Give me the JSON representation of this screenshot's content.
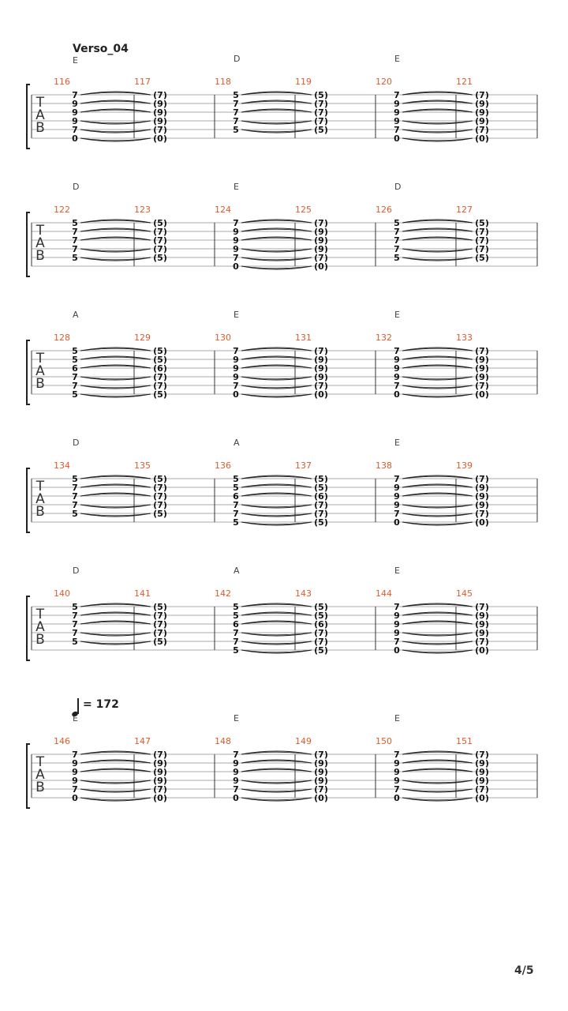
{
  "section_title": "Verso_04",
  "tempo": "= 172",
  "page_number": "4/5",
  "tab_clef": [
    "T",
    "A",
    "B"
  ],
  "colors": {
    "staff_line": "#aaaaaa",
    "bar_line": "#333333",
    "measure_number": "#e05a2b",
    "fret": "#111111",
    "chord": "#444444"
  },
  "systems": [
    {
      "measures": [
        {
          "number": "116",
          "chord": "E",
          "frets": [
            "7",
            "9",
            "9",
            "9",
            "7",
            "0"
          ]
        },
        {
          "number": "117",
          "chord": "",
          "frets": [
            "(7)",
            "(9)",
            "(9)",
            "(9)",
            "(7)",
            "(0)"
          ]
        },
        {
          "number": "118",
          "chord": "D",
          "frets": [
            "5",
            "7",
            "7",
            "7",
            "5",
            ""
          ]
        },
        {
          "number": "119",
          "chord": "",
          "frets": [
            "(5)",
            "(7)",
            "(7)",
            "(7)",
            "(5)",
            ""
          ]
        },
        {
          "number": "120",
          "chord": "E",
          "frets": [
            "7",
            "9",
            "9",
            "9",
            "7",
            "0"
          ]
        },
        {
          "number": "121",
          "chord": "",
          "frets": [
            "(7)",
            "(9)",
            "(9)",
            "(9)",
            "(7)",
            "(0)"
          ]
        }
      ]
    },
    {
      "measures": [
        {
          "number": "122",
          "chord": "D",
          "frets": [
            "5",
            "7",
            "7",
            "7",
            "5",
            ""
          ]
        },
        {
          "number": "123",
          "chord": "",
          "frets": [
            "(5)",
            "(7)",
            "(7)",
            "(7)",
            "(5)",
            ""
          ]
        },
        {
          "number": "124",
          "chord": "E",
          "frets": [
            "7",
            "9",
            "9",
            "9",
            "7",
            "0"
          ]
        },
        {
          "number": "125",
          "chord": "",
          "frets": [
            "(7)",
            "(9)",
            "(9)",
            "(9)",
            "(7)",
            "(0)"
          ]
        },
        {
          "number": "126",
          "chord": "D",
          "frets": [
            "5",
            "7",
            "7",
            "7",
            "5",
            ""
          ]
        },
        {
          "number": "127",
          "chord": "",
          "frets": [
            "(5)",
            "(7)",
            "(7)",
            "(7)",
            "(5)",
            ""
          ]
        }
      ]
    },
    {
      "measures": [
        {
          "number": "128",
          "chord": "A",
          "frets": [
            "5",
            "5",
            "6",
            "7",
            "7",
            "5"
          ]
        },
        {
          "number": "129",
          "chord": "",
          "frets": [
            "(5)",
            "(5)",
            "(6)",
            "(7)",
            "(7)",
            "(5)"
          ]
        },
        {
          "number": "130",
          "chord": "E",
          "frets": [
            "7",
            "9",
            "9",
            "9",
            "7",
            "0"
          ]
        },
        {
          "number": "131",
          "chord": "",
          "frets": [
            "(7)",
            "(9)",
            "(9)",
            "(9)",
            "(7)",
            "(0)"
          ]
        },
        {
          "number": "132",
          "chord": "E",
          "frets": [
            "7",
            "9",
            "9",
            "9",
            "7",
            "0"
          ]
        },
        {
          "number": "133",
          "chord": "",
          "frets": [
            "(7)",
            "(9)",
            "(9)",
            "(9)",
            "(7)",
            "(0)"
          ]
        }
      ]
    },
    {
      "measures": [
        {
          "number": "134",
          "chord": "D",
          "frets": [
            "5",
            "7",
            "7",
            "7",
            "5",
            ""
          ]
        },
        {
          "number": "135",
          "chord": "",
          "frets": [
            "(5)",
            "(7)",
            "(7)",
            "(7)",
            "(5)",
            ""
          ]
        },
        {
          "number": "136",
          "chord": "A",
          "frets": [
            "5",
            "5",
            "6",
            "7",
            "7",
            "5"
          ]
        },
        {
          "number": "137",
          "chord": "",
          "frets": [
            "(5)",
            "(5)",
            "(6)",
            "(7)",
            "(7)",
            "(5)"
          ]
        },
        {
          "number": "138",
          "chord": "E",
          "frets": [
            "7",
            "9",
            "9",
            "9",
            "7",
            "0"
          ]
        },
        {
          "number": "139",
          "chord": "",
          "frets": [
            "(7)",
            "(9)",
            "(9)",
            "(9)",
            "(7)",
            "(0)"
          ]
        }
      ]
    },
    {
      "measures": [
        {
          "number": "140",
          "chord": "D",
          "frets": [
            "5",
            "7",
            "7",
            "7",
            "5",
            ""
          ]
        },
        {
          "number": "141",
          "chord": "",
          "frets": [
            "(5)",
            "(7)",
            "(7)",
            "(7)",
            "(5)",
            ""
          ]
        },
        {
          "number": "142",
          "chord": "A",
          "frets": [
            "5",
            "5",
            "6",
            "7",
            "7",
            "5"
          ]
        },
        {
          "number": "143",
          "chord": "",
          "frets": [
            "(5)",
            "(5)",
            "(6)",
            "(7)",
            "(7)",
            "(5)"
          ]
        },
        {
          "number": "144",
          "chord": "E",
          "frets": [
            "7",
            "9",
            "9",
            "9",
            "7",
            "0"
          ]
        },
        {
          "number": "145",
          "chord": "",
          "frets": [
            "(7)",
            "(9)",
            "(9)",
            "(9)",
            "(7)",
            "(0)"
          ]
        }
      ]
    },
    {
      "measures": [
        {
          "number": "146",
          "chord": "E",
          "frets": [
            "7",
            "9",
            "9",
            "9",
            "7",
            "0"
          ]
        },
        {
          "number": "147",
          "chord": "",
          "frets": [
            "(7)",
            "(9)",
            "(9)",
            "(9)",
            "(7)",
            "(0)"
          ]
        },
        {
          "number": "148",
          "chord": "E",
          "frets": [
            "7",
            "9",
            "9",
            "9",
            "7",
            "0"
          ]
        },
        {
          "number": "149",
          "chord": "",
          "frets": [
            "(7)",
            "(9)",
            "(9)",
            "(9)",
            "(7)",
            "(0)"
          ]
        },
        {
          "number": "150",
          "chord": "E",
          "frets": [
            "7",
            "9",
            "9",
            "9",
            "7",
            "0"
          ]
        },
        {
          "number": "151",
          "chord": "",
          "frets": [
            "(7)",
            "(9)",
            "(9)",
            "(9)",
            "(7)",
            "(0)"
          ]
        }
      ]
    }
  ]
}
